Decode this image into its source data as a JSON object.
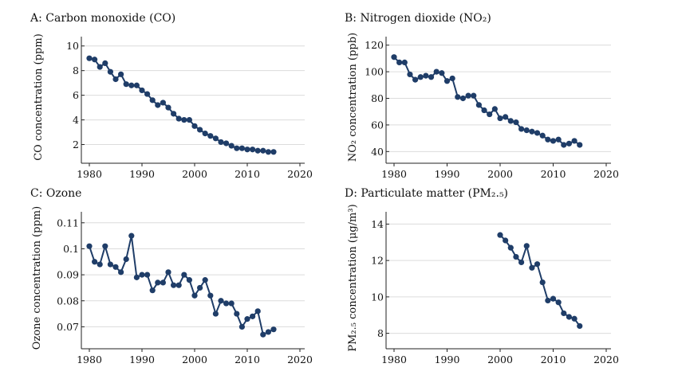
{
  "colors": {
    "series": "#1f3d68",
    "grid": "#dcdcdc",
    "axis": "#222222"
  },
  "chart_data": [
    {
      "id": "A",
      "type": "line",
      "title": "A: Carbon monoxide (CO)",
      "ylabel": "CO concentration (ppm)",
      "xlabel": "",
      "xlim": [
        1980,
        2020
      ],
      "ylim": [
        1,
        10.5
      ],
      "xticks": [
        1980,
        1990,
        2000,
        2010,
        2020
      ],
      "yticks": [
        2,
        4,
        6,
        8,
        10
      ],
      "ytick_labels": [
        "2",
        "4",
        "6",
        "8",
        "10"
      ],
      "grid": true,
      "x": [
        1980,
        1981,
        1982,
        1983,
        1984,
        1985,
        1986,
        1987,
        1988,
        1989,
        1990,
        1991,
        1992,
        1993,
        1994,
        1995,
        1996,
        1997,
        1998,
        1999,
        2000,
        2001,
        2002,
        2003,
        2004,
        2005,
        2006,
        2007,
        2008,
        2009,
        2010,
        2011,
        2012,
        2013,
        2014,
        2015
      ],
      "values": [
        9.0,
        8.9,
        8.3,
        8.6,
        7.9,
        7.3,
        7.7,
        6.9,
        6.8,
        6.8,
        6.4,
        6.1,
        5.6,
        5.2,
        5.4,
        5.0,
        4.5,
        4.1,
        4.0,
        4.0,
        3.5,
        3.2,
        2.9,
        2.7,
        2.5,
        2.2,
        2.1,
        1.9,
        1.7,
        1.7,
        1.6,
        1.6,
        1.5,
        1.5,
        1.4,
        1.4
      ]
    },
    {
      "id": "B",
      "type": "line",
      "title": "B: Nitrogen dioxide (NO₂)",
      "ylabel": "NO₂ concentration (ppb)",
      "xlabel": "",
      "xlim": [
        1980,
        2020
      ],
      "ylim": [
        36,
        124
      ],
      "xticks": [
        1980,
        1990,
        2000,
        2010,
        2020
      ],
      "yticks": [
        40,
        60,
        80,
        100,
        120
      ],
      "ytick_labels": [
        "40",
        "60",
        "80",
        "100",
        "120"
      ],
      "grid": true,
      "x": [
        1980,
        1981,
        1982,
        1983,
        1984,
        1985,
        1986,
        1987,
        1988,
        1989,
        1990,
        1991,
        1992,
        1993,
        1994,
        1995,
        1996,
        1997,
        1998,
        1999,
        2000,
        2001,
        2002,
        2003,
        2004,
        2005,
        2006,
        2007,
        2008,
        2009,
        2010,
        2011,
        2012,
        2013,
        2014,
        2015
      ],
      "values": [
        111,
        107,
        107,
        98,
        94,
        96,
        97,
        96,
        100,
        99,
        93,
        95,
        81,
        80,
        82,
        82,
        75,
        71,
        68,
        72,
        65,
        66,
        63,
        62,
        57,
        56,
        55,
        54,
        52,
        49,
        48,
        49,
        45,
        46,
        48,
        45
      ]
    },
    {
      "id": "C",
      "type": "line",
      "title": "C: Ozone",
      "ylabel": "Ozone concentration (ppm)",
      "xlabel": "",
      "xlim": [
        1980,
        2020
      ],
      "ylim": [
        0.064,
        0.113
      ],
      "xticks": [
        1980,
        1990,
        2000,
        2010,
        2020
      ],
      "yticks": [
        0.07,
        0.08,
        0.09,
        0.1,
        0.11
      ],
      "ytick_labels": [
        "0.07",
        "0.08",
        "0.09",
        "0.1",
        "0.11"
      ],
      "grid": true,
      "x": [
        1980,
        1981,
        1982,
        1983,
        1984,
        1985,
        1986,
        1987,
        1988,
        1989,
        1990,
        1991,
        1992,
        1993,
        1994,
        1995,
        1996,
        1997,
        1998,
        1999,
        2000,
        2001,
        2002,
        2003,
        2004,
        2005,
        2006,
        2007,
        2008,
        2009,
        2010,
        2011,
        2012,
        2013,
        2014,
        2015
      ],
      "values": [
        0.101,
        0.095,
        0.094,
        0.101,
        0.094,
        0.093,
        0.091,
        0.096,
        0.105,
        0.089,
        0.09,
        0.09,
        0.084,
        0.087,
        0.087,
        0.091,
        0.086,
        0.086,
        0.09,
        0.088,
        0.082,
        0.085,
        0.088,
        0.082,
        0.075,
        0.08,
        0.079,
        0.079,
        0.075,
        0.07,
        0.073,
        0.074,
        0.076,
        0.067,
        0.068,
        0.069
      ]
    },
    {
      "id": "D",
      "type": "line",
      "title": "D: Particulate matter (PM₂.₅)",
      "ylabel": "PM₂.₅ concentration (μg/m³)",
      "xlabel": "",
      "xlim": [
        1980,
        2020
      ],
      "ylim": [
        7.5,
        14.5
      ],
      "xticks": [
        1980,
        1990,
        2000,
        2010,
        2020
      ],
      "yticks": [
        8,
        10,
        12,
        14
      ],
      "ytick_labels": [
        "8",
        "10",
        "12",
        "14"
      ],
      "grid": true,
      "x": [
        2000,
        2001,
        2002,
        2003,
        2004,
        2005,
        2006,
        2007,
        2008,
        2009,
        2010,
        2011,
        2012,
        2013,
        2014,
        2015
      ],
      "values": [
        13.4,
        13.1,
        12.7,
        12.2,
        11.9,
        12.8,
        11.6,
        11.8,
        10.8,
        9.8,
        9.9,
        9.7,
        9.1,
        8.9,
        8.8,
        8.4
      ]
    }
  ]
}
